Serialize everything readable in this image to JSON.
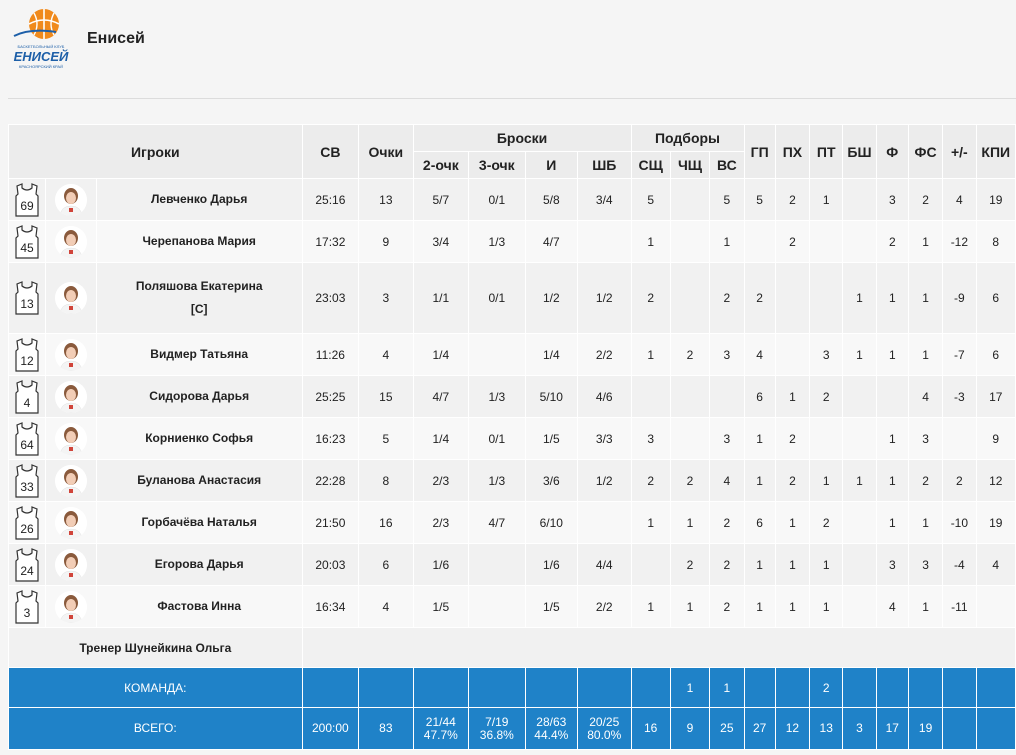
{
  "header": {
    "title": "Енисей",
    "logo": {
      "line1": "БАСКЕТБОЛЬНЫЙ КЛУБ",
      "name": "ЕНИСЕЙ",
      "line2": "КРАСНОЯРСКИЙ КРАЙ",
      "colors": {
        "ball": "#f08a1c",
        "text": "#1d5fa8"
      }
    }
  },
  "table": {
    "headers": {
      "players": "Игроки",
      "minutes": "СВ",
      "points": "Очки",
      "shots": "Броски",
      "two_pt": "2-очк",
      "three_pt": "3-очк",
      "fg": "И",
      "ft": "ШБ",
      "rebounds": "Подборы",
      "oreb": "СЩ",
      "dreb": "ЧЩ",
      "treb": "ВС",
      "ast": "ГП",
      "tov": "ПХ",
      "stl": "ПТ",
      "blk": "БШ",
      "pf": "Ф",
      "fd": "ФС",
      "pm": "+/-",
      "eff": "КПИ"
    },
    "players": [
      {
        "number": "69",
        "name": "Левченко Дарья",
        "captain": "",
        "min": "25:16",
        "pts": "13",
        "two": "5/7",
        "three": "0/1",
        "fg": "5/8",
        "ft": "3/4",
        "oreb": "5",
        "dreb": "",
        "treb": "5",
        "ast": "5",
        "tov": "2",
        "stl": "1",
        "blk": "",
        "pf": "3",
        "fd": "2",
        "pm": "4",
        "eff": "19"
      },
      {
        "number": "45",
        "name": "Черепанова Мария",
        "captain": "",
        "min": "17:32",
        "pts": "9",
        "two": "3/4",
        "three": "1/3",
        "fg": "4/7",
        "ft": "",
        "oreb": "1",
        "dreb": "",
        "treb": "1",
        "ast": "",
        "tov": "2",
        "stl": "",
        "blk": "",
        "pf": "2",
        "fd": "1",
        "pm": "-12",
        "eff": "8"
      },
      {
        "number": "13",
        "name": "Поляшова Екатерина",
        "captain": "[C]",
        "min": "23:03",
        "pts": "3",
        "two": "1/1",
        "three": "0/1",
        "fg": "1/2",
        "ft": "1/2",
        "oreb": "2",
        "dreb": "",
        "treb": "2",
        "ast": "2",
        "tov": "",
        "stl": "",
        "blk": "1",
        "pf": "1",
        "fd": "1",
        "pm": "-9",
        "eff": "6"
      },
      {
        "number": "12",
        "name": "Видмер Татьяна",
        "captain": "",
        "min": "11:26",
        "pts": "4",
        "two": "1/4",
        "three": "",
        "fg": "1/4",
        "ft": "2/2",
        "oreb": "1",
        "dreb": "2",
        "treb": "3",
        "ast": "4",
        "tov": "",
        "stl": "3",
        "blk": "1",
        "pf": "1",
        "fd": "1",
        "pm": "-7",
        "eff": "6"
      },
      {
        "number": "4",
        "name": "Сидорова Дарья",
        "captain": "",
        "min": "25:25",
        "pts": "15",
        "two": "4/7",
        "three": "1/3",
        "fg": "5/10",
        "ft": "4/6",
        "oreb": "",
        "dreb": "",
        "treb": "",
        "ast": "6",
        "tov": "1",
        "stl": "2",
        "blk": "",
        "pf": "",
        "fd": "4",
        "pm": "-3",
        "eff": "17"
      },
      {
        "number": "64",
        "name": "Корниенко Софья",
        "captain": "",
        "min": "16:23",
        "pts": "5",
        "two": "1/4",
        "three": "0/1",
        "fg": "1/5",
        "ft": "3/3",
        "oreb": "3",
        "dreb": "",
        "treb": "3",
        "ast": "1",
        "tov": "2",
        "stl": "",
        "blk": "",
        "pf": "1",
        "fd": "3",
        "pm": "",
        "eff": "9"
      },
      {
        "number": "33",
        "name": "Буланова Анастасия",
        "captain": "",
        "min": "22:28",
        "pts": "8",
        "two": "2/3",
        "three": "1/3",
        "fg": "3/6",
        "ft": "1/2",
        "oreb": "2",
        "dreb": "2",
        "treb": "4",
        "ast": "1",
        "tov": "2",
        "stl": "1",
        "blk": "1",
        "pf": "1",
        "fd": "2",
        "pm": "2",
        "eff": "12"
      },
      {
        "number": "26",
        "name": "Горбачёва Наталья",
        "captain": "",
        "min": "21:50",
        "pts": "16",
        "two": "2/3",
        "three": "4/7",
        "fg": "6/10",
        "ft": "",
        "oreb": "1",
        "dreb": "1",
        "treb": "2",
        "ast": "6",
        "tov": "1",
        "stl": "2",
        "blk": "",
        "pf": "1",
        "fd": "1",
        "pm": "-10",
        "eff": "19"
      },
      {
        "number": "24",
        "name": "Егорова Дарья",
        "captain": "",
        "min": "20:03",
        "pts": "6",
        "two": "1/6",
        "three": "",
        "fg": "1/6",
        "ft": "4/4",
        "oreb": "",
        "dreb": "2",
        "treb": "2",
        "ast": "1",
        "tov": "1",
        "stl": "1",
        "blk": "",
        "pf": "3",
        "fd": "3",
        "pm": "-4",
        "eff": "4"
      },
      {
        "number": "3",
        "name": "Фастова Инна",
        "captain": "",
        "min": "16:34",
        "pts": "4",
        "two": "1/5",
        "three": "",
        "fg": "1/5",
        "ft": "2/2",
        "oreb": "1",
        "dreb": "1",
        "treb": "2",
        "ast": "1",
        "tov": "1",
        "stl": "1",
        "blk": "",
        "pf": "4",
        "fd": "1",
        "pm": "-11",
        "eff": ""
      }
    ],
    "coach": "Тренер Шунейкина Ольга",
    "team_row": {
      "label": "КОМАНДА:",
      "dreb": "1",
      "treb": "1",
      "stl": "2"
    },
    "total_row": {
      "label": "ВСЕГО:",
      "min": "200:00",
      "pts": "83",
      "two": "21/44",
      "two_pct": "47.7%",
      "three": "7/19",
      "three_pct": "36.8%",
      "fg": "28/63",
      "fg_pct": "44.4%",
      "ft": "20/25",
      "ft_pct": "80.0%",
      "oreb": "16",
      "dreb": "9",
      "treb": "25",
      "ast": "27",
      "tov": "12",
      "stl": "13",
      "blk": "3",
      "pf": "17",
      "fd": "19",
      "pm": "",
      "eff": ""
    }
  }
}
